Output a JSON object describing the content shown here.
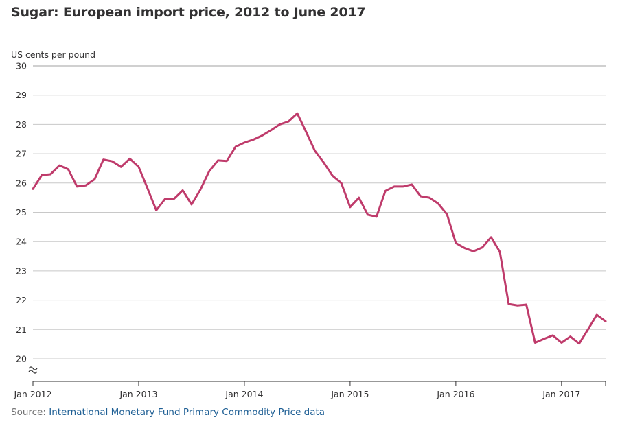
{
  "title": "Sugar: European import price, 2012 to June 2017",
  "unit_label": "US cents per pound",
  "source": {
    "prefix": "Source: ",
    "link_text": "International Monetary Fund Primary Commodity Price data"
  },
  "colors": {
    "line": "#bf3b6b",
    "grid": "#c8c8c8",
    "text": "#323132",
    "link": "#206095"
  },
  "chart_data": {
    "type": "line",
    "title": "Sugar: European import price, 2012 to June 2017",
    "ylabel": "US cents per pound",
    "xlabel": "",
    "ylim": [
      20,
      30
    ],
    "y_axis_break": true,
    "grid": true,
    "y_ticks": [
      30,
      29,
      28,
      27,
      26,
      25,
      24,
      23,
      22,
      21,
      20
    ],
    "x_ticks": [
      "Jan 2012",
      "Jan 2013",
      "Jan 2014",
      "Jan 2015",
      "Jan 2016",
      "Jan 2017"
    ],
    "x": [
      "Jan 2012",
      "Feb 2012",
      "Mar 2012",
      "Apr 2012",
      "May 2012",
      "Jun 2012",
      "Jul 2012",
      "Aug 2012",
      "Sep 2012",
      "Oct 2012",
      "Nov 2012",
      "Dec 2012",
      "Jan 2013",
      "Feb 2013",
      "Mar 2013",
      "Apr 2013",
      "May 2013",
      "Jun 2013",
      "Jul 2013",
      "Aug 2013",
      "Sep 2013",
      "Oct 2013",
      "Nov 2013",
      "Dec 2013",
      "Jan 2014",
      "Feb 2014",
      "Mar 2014",
      "Apr 2014",
      "May 2014",
      "Jun 2014",
      "Jul 2014",
      "Aug 2014",
      "Sep 2014",
      "Oct 2014",
      "Nov 2014",
      "Dec 2014",
      "Jan 2015",
      "Feb 2015",
      "Mar 2015",
      "Apr 2015",
      "May 2015",
      "Jun 2015",
      "Jul 2015",
      "Aug 2015",
      "Sep 2015",
      "Oct 2015",
      "Nov 2015",
      "Dec 2015",
      "Jan 2016",
      "Feb 2016",
      "Mar 2016",
      "Apr 2016",
      "May 2016",
      "Jun 2016",
      "Jul 2016",
      "Aug 2016",
      "Sep 2016",
      "Oct 2016",
      "Nov 2016",
      "Dec 2016",
      "Jan 2017",
      "Feb 2017",
      "Mar 2017",
      "Apr 2017",
      "May 2017",
      "Jun 2017"
    ],
    "series": [
      {
        "values": [
          25.8,
          26.27,
          26.3,
          26.6,
          26.47,
          25.88,
          25.92,
          26.13,
          26.8,
          26.74,
          26.55,
          26.83,
          26.55,
          25.82,
          25.07,
          25.46,
          25.46,
          25.75,
          25.27,
          25.77,
          26.4,
          26.77,
          26.75,
          27.24,
          27.38,
          27.48,
          27.62,
          27.8,
          28.0,
          28.1,
          28.38,
          27.75,
          27.1,
          26.7,
          26.25,
          26.0,
          25.18,
          25.5,
          24.92,
          24.85,
          25.73,
          25.88,
          25.88,
          25.95,
          25.55,
          25.5,
          25.3,
          24.93,
          23.95,
          23.78,
          23.67,
          23.8,
          24.15,
          23.65,
          21.87,
          21.82,
          21.85,
          20.55,
          20.68,
          20.8,
          20.55,
          20.76,
          20.52,
          21.0,
          21.5,
          21.28
        ]
      }
    ]
  }
}
